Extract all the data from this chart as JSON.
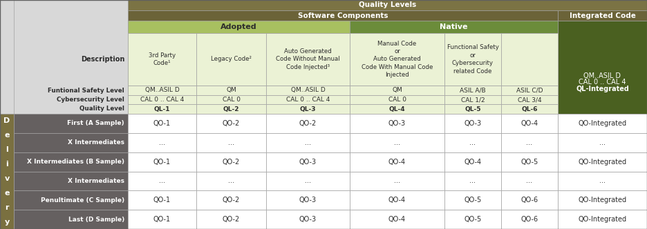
{
  "colors": {
    "header_dark_olive": "#7B7344",
    "software_comp_olive": "#6B6338",
    "adopted_green": "#A8C060",
    "native_green": "#6B8C3A",
    "light_green_bg": "#EBF2D5",
    "integrated_dark_green": "#4A6020",
    "delivery_olive": "#7A7040",
    "row_gray_dark": "#656060",
    "header_area_gray": "#D8D8D8",
    "header_area_light": "#E8E8E8",
    "white": "#FFFFFF",
    "border": "#A0A0A0",
    "text_dark": "#2C2C2C",
    "text_white": "#FFFFFF",
    "text_bold_dark": "#1A1A1A"
  },
  "quality_levels_header": "Quality Levels",
  "software_components_header": "Software Components",
  "adopted_header": "Adopted",
  "native_header": "Native",
  "integrated_code_header": "Integrated Code",
  "delivery_label_chars": [
    "D",
    "e",
    "l",
    "i",
    "v",
    "e",
    "r",
    "y"
  ],
  "col_headers": [
    "3rd Party\nCode¹",
    "Legacy Code²",
    "Auto Generated\nCode Without Manual\nCode Injected³",
    "Manual Code\nor\nAuto Generated\nCode With Manual Code\nInjected",
    "Functional Safety\nor\nCybersecurity\nrelated Code",
    ""
  ],
  "col_fsl": [
    "QM..ASIL D",
    "QM",
    "QM..ASIL D",
    "QM",
    "ASIL A/B",
    "ASIL C/D"
  ],
  "col_csl": [
    "CAL 0 .. CAL 4",
    "CAL 0",
    "CAL 0 .. CAL 4",
    "CAL 0",
    "CAL 1/2",
    "CAL 3/4"
  ],
  "col_ql": [
    "QL-1",
    "QL-2",
    "QL-3",
    "QL-4",
    "QL-5",
    "QL-6"
  ],
  "integrated_fsl": "QM..ASIL D",
  "integrated_csl": "CAL 0 .. CAL 4",
  "integrated_ql": "QL-Integrated",
  "left_labels": [
    "Description",
    "Funtional Safety Level",
    "Cybersecurity Level",
    "Quality Level"
  ],
  "delivery_rows": [
    {
      "label": "First (A Sample)",
      "values": [
        "QO-1",
        "QO-2",
        "QO-2",
        "QO-3",
        "QO-3",
        "QO-4"
      ],
      "integrated": "QO-Integrated"
    },
    {
      "label": "X Intermediates",
      "values": [
        "...",
        "...",
        "...",
        "...",
        "...",
        "..."
      ],
      "integrated": "..."
    },
    {
      "label": "X Intermediates (B Sample)",
      "values": [
        "QO-1",
        "QO-2",
        "QO-3",
        "QO-4",
        "QO-4",
        "QO-5"
      ],
      "integrated": "QO-Integrated"
    },
    {
      "label": "X Intermediates",
      "values": [
        "...",
        "...",
        "...",
        "...",
        "...",
        "..."
      ],
      "integrated": "..."
    },
    {
      "label": "Penultimate (C Sample)",
      "values": [
        "QO-1",
        "QO-2",
        "QO-3",
        "QO-4",
        "QO-5",
        "QO-6"
      ],
      "integrated": "QO-Integrated"
    },
    {
      "label": "Last (D Sample)",
      "values": [
        "QO-1",
        "QO-2",
        "QO-3",
        "QO-4",
        "QO-5",
        "QO-6"
      ],
      "integrated": "QO-Integrated"
    }
  ]
}
